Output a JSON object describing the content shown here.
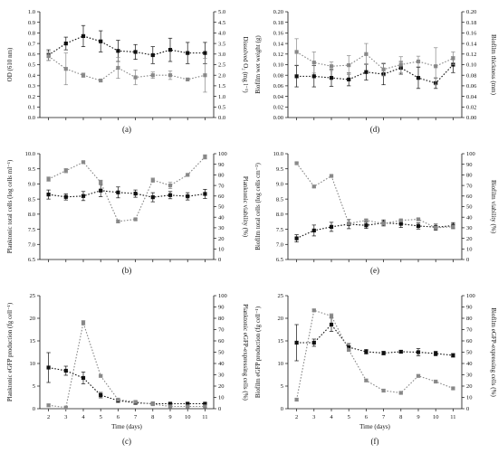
{
  "chart_data": [
    {
      "panel": "(a)",
      "type": "line",
      "x": [
        2,
        3,
        4,
        5,
        6,
        7,
        8,
        9,
        10,
        11
      ],
      "left_axis": {
        "label": "OD (610 nm)",
        "range": [
          0,
          1.0
        ],
        "ticks": [
          "0.0",
          "0.1",
          "0.2",
          "0.3",
          "0.4",
          "0.5",
          "0.6",
          "0.7",
          "0.8",
          "0.9",
          "1.0"
        ]
      },
      "right_axis": {
        "label": "Dissolved O₂ (mg l⁻¹)",
        "range": [
          0,
          5.0
        ],
        "ticks": [
          "0.0",
          "0.5",
          "1.0",
          "1.5",
          "2.0",
          "2.5",
          "3.0",
          "3.5",
          "4.0",
          "4.5",
          "5.0"
        ]
      },
      "series": [
        {
          "axis": "left",
          "color": "#111111",
          "marker": "square",
          "values": [
            0.59,
            0.7,
            0.77,
            0.72,
            0.63,
            0.62,
            0.59,
            0.64,
            0.61,
            0.61
          ],
          "errors": [
            0.05,
            0.06,
            0.1,
            0.1,
            0.1,
            0.07,
            0.08,
            0.11,
            0.1,
            0.1
          ]
        },
        {
          "axis": "right",
          "color": "#888888",
          "marker": "square",
          "values": [
            2.9,
            2.3,
            2.0,
            1.75,
            2.35,
            1.9,
            2.0,
            2.0,
            1.8,
            2.0
          ],
          "errors": [
            0.2,
            0.75,
            0.1,
            0.05,
            0.5,
            0.35,
            0.15,
            0.2,
            0.05,
            0.8
          ]
        }
      ]
    },
    {
      "panel": "(d)",
      "type": "line",
      "x": [
        2,
        3,
        4,
        5,
        6,
        7,
        8,
        9,
        10,
        11
      ],
      "left_axis": {
        "label": "Biofilm wet weight (g)",
        "range": [
          0,
          0.2
        ],
        "ticks": [
          "0.00",
          "0.02",
          "0.04",
          "0.06",
          "0.08",
          "0.10",
          "0.12",
          "0.14",
          "0.16",
          "0.18",
          "0.20"
        ]
      },
      "right_axis": {
        "label": "Biofilm thickness (mm)",
        "range": [
          0,
          0.2
        ],
        "ticks": [
          "0.00",
          "0.02",
          "0.04",
          "0.06",
          "0.08",
          "0.10",
          "0.12",
          "0.14",
          "0.16",
          "0.18",
          "0.20"
        ]
      },
      "series": [
        {
          "axis": "left",
          "color": "#111111",
          "marker": "square",
          "values": [
            0.078,
            0.078,
            0.075,
            0.072,
            0.086,
            0.082,
            0.094,
            0.075,
            0.065,
            0.1
          ],
          "errors": [
            0.02,
            0.02,
            0.016,
            0.012,
            0.015,
            0.02,
            0.012,
            0.02,
            0.01,
            0.015
          ]
        },
        {
          "axis": "right",
          "color": "#888888",
          "marker": "square",
          "values": [
            0.124,
            0.104,
            0.097,
            0.099,
            0.12,
            0.091,
            0.1,
            0.106,
            0.097,
            0.112
          ],
          "errors": [
            0.025,
            0.02,
            0.008,
            0.018,
            0.02,
            0.012,
            0.015,
            0.01,
            0.035,
            0.012
          ]
        }
      ]
    },
    {
      "panel": "(b)",
      "type": "line",
      "x": [
        2,
        3,
        4,
        5,
        6,
        7,
        8,
        9,
        10,
        11
      ],
      "left_axis": {
        "label": "Planktonic total cells (log cells ml⁻¹)",
        "range": [
          6.5,
          10.0
        ],
        "ticks": [
          "6.5",
          "7.0",
          "7.5",
          "8.0",
          "8.5",
          "9.0",
          "9.5",
          "10.0"
        ]
      },
      "right_axis": {
        "label": "Planktonic viability (%)",
        "range": [
          0,
          100
        ],
        "ticks": [
          "0",
          "10",
          "20",
          "30",
          "40",
          "50",
          "60",
          "70",
          "80",
          "90",
          "100"
        ]
      },
      "series": [
        {
          "axis": "left",
          "color": "#111111",
          "marker": "square",
          "values": [
            8.65,
            8.57,
            8.6,
            8.78,
            8.72,
            8.68,
            8.56,
            8.63,
            8.59,
            8.67
          ],
          "errors": [
            0.15,
            0.1,
            0.15,
            0.2,
            0.18,
            0.12,
            0.15,
            0.12,
            0.12,
            0.15
          ]
        },
        {
          "axis": "right",
          "color": "#888888",
          "marker": "square",
          "values": [
            76,
            84,
            92,
            73,
            36,
            38,
            75,
            70,
            80,
            97
          ],
          "errors": [
            2,
            2,
            1,
            2,
            1,
            1,
            2,
            3,
            1,
            2
          ]
        }
      ]
    },
    {
      "panel": "(e)",
      "type": "line",
      "x": [
        2,
        3,
        4,
        5,
        6,
        7,
        8,
        9,
        10,
        11
      ],
      "left_axis": {
        "label": "Biofilm total cells (log cells cm⁻²)",
        "range": [
          6.5,
          10.0
        ],
        "ticks": [
          "6.5",
          "7.0",
          "7.5",
          "8.0",
          "8.5",
          "9.0",
          "9.5",
          "10.0"
        ]
      },
      "right_axis": {
        "label": "Biofilm viability (%)",
        "range": [
          0,
          100
        ],
        "ticks": [
          "0",
          "10",
          "20",
          "30",
          "40",
          "50",
          "60",
          "70",
          "80",
          "90",
          "100"
        ]
      },
      "series": [
        {
          "axis": "left",
          "color": "#111111",
          "marker": "square",
          "values": [
            7.2,
            7.46,
            7.58,
            7.67,
            7.63,
            7.71,
            7.68,
            7.61,
            7.57,
            7.62
          ],
          "errors": [
            0.12,
            0.18,
            0.15,
            0.15,
            0.1,
            0.1,
            0.12,
            0.1,
            0.1,
            0.1
          ]
        },
        {
          "axis": "right",
          "color": "#888888",
          "marker": "square",
          "values": [
            91,
            69,
            79,
            34,
            37,
            34,
            37,
            38,
            30,
            31
          ],
          "errors": [
            1,
            1,
            1,
            1,
            1,
            1,
            1,
            1,
            1,
            1
          ]
        }
      ]
    },
    {
      "panel": "(c)",
      "type": "line",
      "xlabel": "Time (days)",
      "x": [
        2,
        3,
        4,
        5,
        6,
        7,
        8,
        9,
        10,
        11
      ],
      "left_axis": {
        "label": "Planktonic eGFP production (fg cell⁻¹)",
        "range": [
          0,
          25
        ],
        "ticks": [
          "0",
          "5",
          "10",
          "15",
          "20",
          "25"
        ]
      },
      "right_axis": {
        "label": "Planktonic eGFP-expressing cells (%)",
        "range": [
          0,
          100
        ],
        "ticks": [
          "0",
          "10",
          "20",
          "30",
          "40",
          "50",
          "60",
          "70",
          "80",
          "90",
          "100"
        ]
      },
      "series": [
        {
          "axis": "left",
          "color": "#111111",
          "marker": "square",
          "values": [
            9.1,
            8.4,
            6.8,
            3.0,
            1.8,
            1.3,
            1.1,
            1.1,
            1.1,
            1.1
          ],
          "errors": [
            3.3,
            1.0,
            1.3,
            0.6,
            0.4,
            0.3,
            0.3,
            0.2,
            0.2,
            0.2
          ]
        },
        {
          "axis": "right",
          "color": "#888888",
          "marker": "square",
          "values": [
            3,
            1,
            76,
            29,
            8,
            6,
            4,
            2,
            2,
            2
          ],
          "errors": [
            1,
            1,
            2,
            1,
            1,
            1,
            1,
            1,
            1,
            1
          ]
        }
      ]
    },
    {
      "panel": "(f)",
      "type": "line",
      "xlabel": "Time (days)",
      "x": [
        2,
        3,
        4,
        5,
        6,
        7,
        8,
        9,
        10,
        11
      ],
      "left_axis": {
        "label": "Biofilm eGFP production (fg cell⁻¹)",
        "range": [
          0,
          25
        ],
        "ticks": [
          "0",
          "5",
          "10",
          "15",
          "20",
          "25"
        ]
      },
      "right_axis": {
        "label": "Biofilm eGFP-expressing cells (%)",
        "range": [
          0,
          100
        ],
        "ticks": [
          "0",
          "10",
          "20",
          "30",
          "40",
          "50",
          "60",
          "70",
          "80",
          "90",
          "100"
        ]
      },
      "series": [
        {
          "axis": "left",
          "color": "#111111",
          "marker": "square",
          "values": [
            14.6,
            14.6,
            18.6,
            13.6,
            12.6,
            12.3,
            12.6,
            12.5,
            12.2,
            11.8
          ],
          "errors": [
            4.0,
            0.8,
            1.5,
            0.8,
            0.5,
            0.4,
            0.3,
            0.8,
            0.5,
            0.4
          ]
        },
        {
          "axis": "right",
          "color": "#888888",
          "marker": "square",
          "values": [
            8,
            87,
            82,
            52,
            25,
            16,
            14,
            29,
            24,
            18
          ],
          "errors": [
            1,
            1,
            2,
            1,
            1,
            1,
            1,
            1,
            1,
            1
          ]
        }
      ]
    }
  ]
}
